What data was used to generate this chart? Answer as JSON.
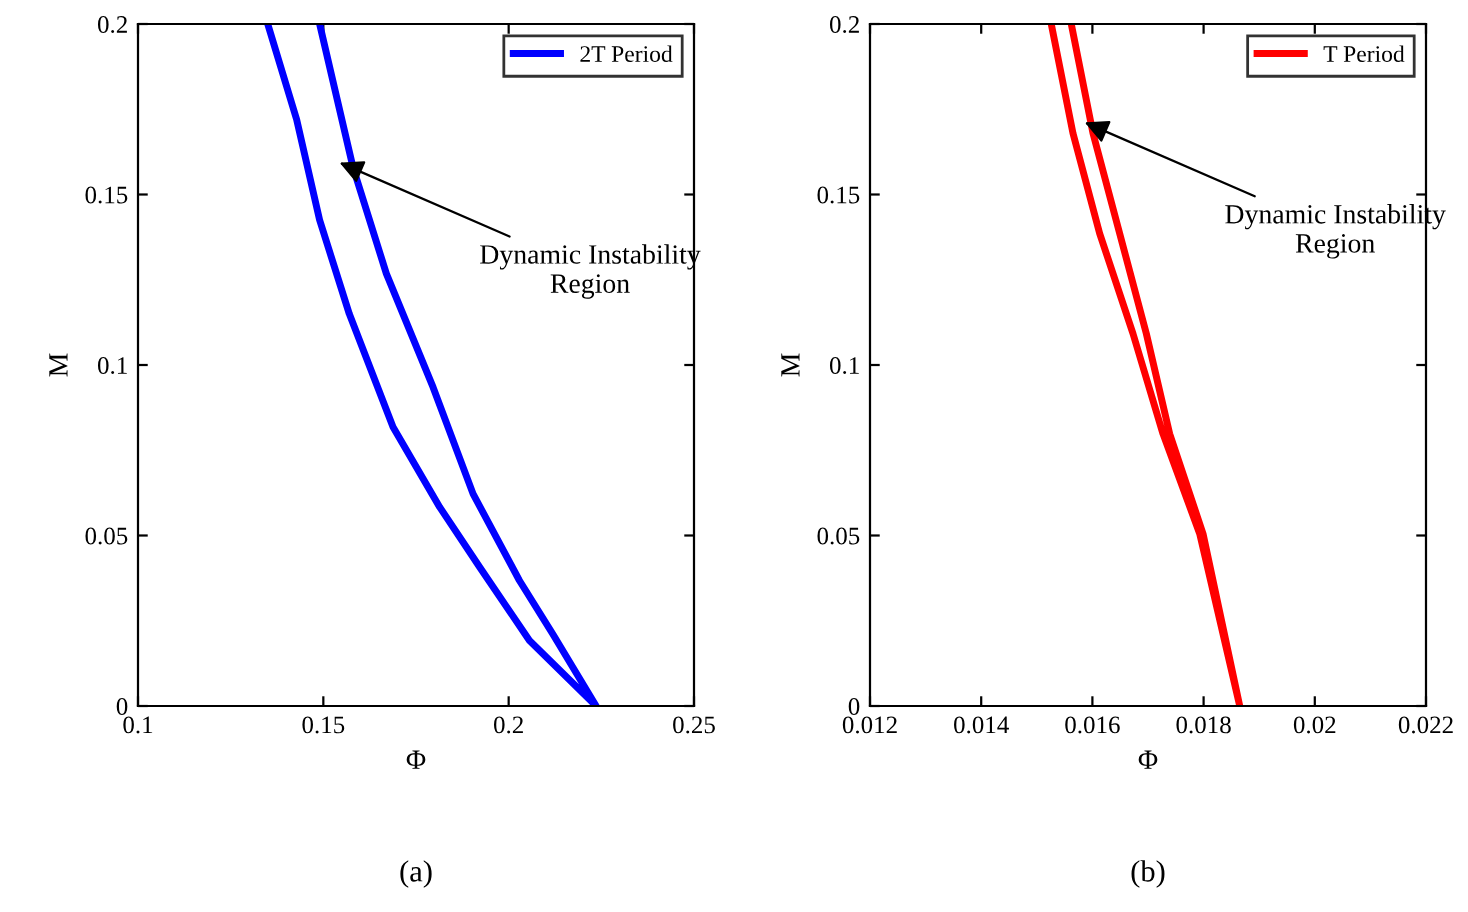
{
  "chart_data": [
    {
      "type": "line",
      "xlabel": "Φ",
      "ylabel": "M",
      "xlim": [
        0.1,
        0.25
      ],
      "ylim": [
        0,
        0.2
      ],
      "xticks": [
        0.1,
        0.15,
        0.2,
        0.25
      ],
      "yticks": [
        0,
        0.05,
        0.1,
        0.15,
        0.2
      ],
      "grid": false,
      "legend": "top right",
      "marker": "none",
      "line_style": "solid",
      "series": [
        {
          "name": "2T Period",
          "color": "#0000ff",
          "x": [
            0.135,
            0.1428,
            0.149,
            0.157,
            0.1688,
            0.1814,
            0.1922,
            0.2056,
            0.2236,
            0.2119,
            0.2029,
            0.1904,
            0.1796,
            0.167,
            0.158,
            0.149
          ],
          "values": [
            0.2,
            0.172,
            0.1425,
            0.115,
            0.0818,
            0.0583,
            0.0407,
            0.0192,
            0,
            0.0211,
            0.0368,
            0.0622,
            0.0935,
            0.1268,
            0.158,
            0.2
          ]
        }
      ],
      "annotations": [
        {
          "text": "Dynamic Instability\nRegion",
          "x": 0.153,
          "y": 0.16
        },
        "(a)"
      ]
    },
    {
      "type": "line",
      "xlabel": "Φ",
      "ylabel": "M",
      "xlim": [
        0.012,
        0.022
      ],
      "ylim": [
        0,
        0.2
      ],
      "xticks": [
        0.012,
        0.014,
        0.016,
        0.018,
        0.02,
        0.022
      ],
      "yticks": [
        0,
        0.05,
        0.1,
        0.15,
        0.2
      ],
      "grid": false,
      "legend": "top right",
      "marker": "none",
      "line_style": "solid",
      "series": [
        {
          "name": "T Period",
          "color": "#ff0000",
          "x": [
            0.01526,
            0.01565,
            0.01613,
            0.01673,
            0.01727,
            0.01793,
            0.01865,
            0.01799,
            0.01739,
            0.01697,
            0.01649,
            0.01601,
            0.01562
          ],
          "values": [
            0.2,
            0.168,
            0.1386,
            0.1092,
            0.0798,
            0.0505,
            0,
            0.0505,
            0.0798,
            0.1092,
            0.1386,
            0.168,
            0.2
          ]
        }
      ],
      "annotations": [
        {
          "text": "Dynamic Instability\nRegion",
          "x": 0.01577,
          "y": 0.1718
        },
        "(b)"
      ]
    }
  ]
}
